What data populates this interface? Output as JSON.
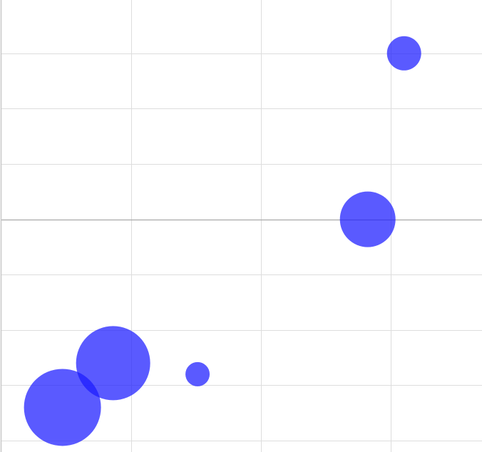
{
  "chart_data": {
    "type": "scatter",
    "variant": "bubble",
    "title": "",
    "xlabel": "",
    "ylabel": "",
    "xlim": [
      0,
      3.7
    ],
    "ylim": [
      -4,
      4
    ],
    "x_gridlines": [
      1,
      2,
      3
    ],
    "y_gridlines": [
      -4,
      -3,
      -2,
      -1,
      0,
      1,
      2,
      3
    ],
    "grid": true,
    "legend": "none",
    "color": "#1a1aff",
    "series": [
      {
        "points": [
          {
            "x": 0.47,
            "y": -3.4,
            "size": 54
          },
          {
            "x": 0.86,
            "y": -2.6,
            "size": 52
          },
          {
            "x": 1.51,
            "y": -2.8,
            "size": 17
          },
          {
            "x": 2.82,
            "y": 0.0,
            "size": 39
          },
          {
            "x": 3.1,
            "y": 3.0,
            "size": 24
          }
        ]
      }
    ]
  }
}
